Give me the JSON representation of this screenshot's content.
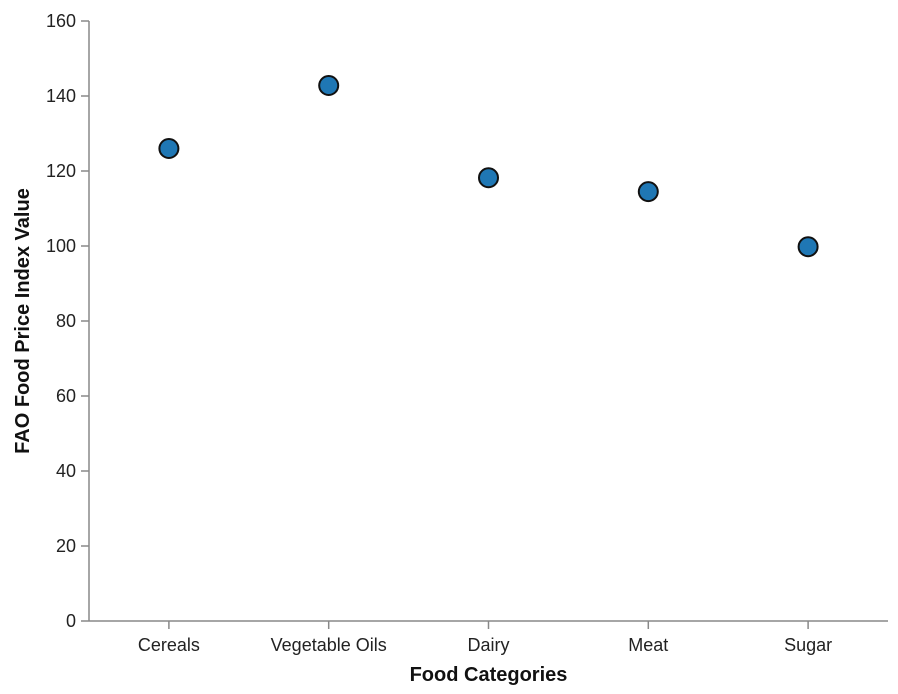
{
  "chart_data": {
    "type": "scatter",
    "categories": [
      "Cereals",
      "Vegetable Oils",
      "Dairy",
      "Meat",
      "Sugar"
    ],
    "values": [
      126,
      142.8,
      118.2,
      114.5,
      99.8
    ],
    "xlabel": "Food Categories",
    "ylabel": "FAO Food Price Index Value",
    "ylim": [
      0,
      160
    ],
    "yticks": [
      0,
      20,
      40,
      60,
      80,
      100,
      120,
      140,
      160
    ],
    "grid": false,
    "legend": "none",
    "point_color": "#1f77b4",
    "point_stroke": "#111111"
  }
}
